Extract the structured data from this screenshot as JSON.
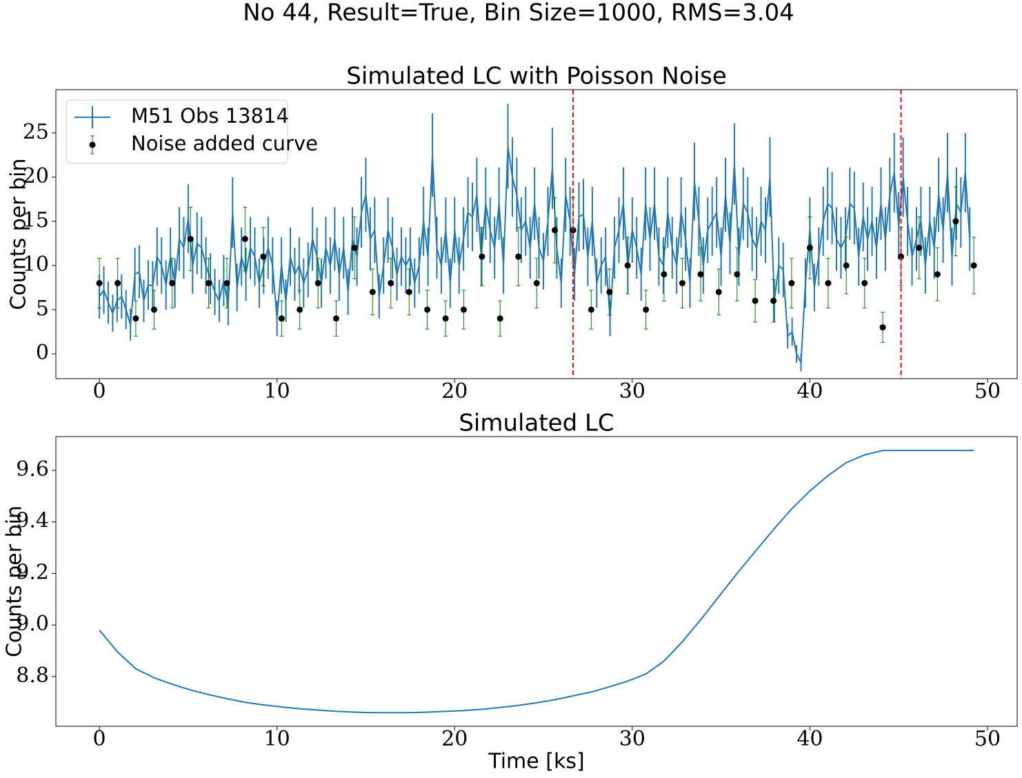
{
  "suptitle": "No 44, Result=True, Bin Size=1000, RMS=3.04",
  "chart_data": [
    {
      "type": "errorbar",
      "title": "Simulated LC with Poisson Noise",
      "ylabel": "Counts per bin",
      "xlim": [
        -2.45,
        51.67
      ],
      "ylim": [
        -2.81,
        29.9
      ],
      "xticks": [
        0,
        10,
        20,
        30,
        40,
        50
      ],
      "yticks": [
        0,
        5,
        10,
        15,
        20,
        25
      ],
      "legend": "upper left",
      "vlines": [
        26.67,
        45.13
      ],
      "vline_color": "#ff0000",
      "series": [
        {
          "name": "M51 Obs 13814",
          "color": "#1f77b4",
          "style": "line",
          "x": [
            0,
            0.25,
            0.5,
            0.75,
            1,
            1.25,
            1.5,
            1.75,
            2,
            2.25,
            2.5,
            2.75,
            3,
            3.25,
            3.5,
            3.75,
            4,
            4.25,
            4.5,
            4.75,
            5,
            5.25,
            5.5,
            5.75,
            6,
            6.25,
            6.5,
            6.75,
            7,
            7.25,
            7.5,
            7.75,
            8,
            8.25,
            8.5,
            8.75,
            9,
            9.25,
            9.5,
            9.75,
            10,
            10.25,
            10.5,
            10.75,
            11,
            11.25,
            11.5,
            11.75,
            12,
            12.25,
            12.5,
            12.75,
            13,
            13.25,
            13.5,
            13.75,
            14,
            14.25,
            14.5,
            14.75,
            15,
            15.25,
            15.5,
            15.75,
            16,
            16.25,
            16.5,
            16.75,
            17,
            17.25,
            17.5,
            17.75,
            18,
            18.25,
            18.5,
            18.75,
            19,
            19.25,
            19.5,
            19.75,
            20,
            20.25,
            20.5,
            20.75,
            21,
            21.25,
            21.5,
            21.75,
            22,
            22.25,
            22.5,
            22.75,
            23,
            23.25,
            23.5,
            23.75,
            24,
            24.25,
            24.5,
            24.75,
            25,
            25.25,
            25.5,
            25.75,
            26,
            26.25,
            26.5,
            26.75,
            27,
            27.25,
            27.5,
            27.75,
            28,
            28.25,
            28.5,
            28.75,
            29,
            29.25,
            29.5,
            29.75,
            30,
            30.25,
            30.5,
            30.75,
            31,
            31.25,
            31.5,
            31.75,
            32,
            32.25,
            32.5,
            32.75,
            33,
            33.25,
            33.5,
            33.75,
            34,
            34.25,
            34.5,
            34.75,
            35,
            35.25,
            35.5,
            35.75,
            36,
            36.25,
            36.5,
            36.75,
            37,
            37.25,
            37.5,
            37.75,
            38,
            38.25,
            38.5,
            38.75,
            39,
            39.25,
            39.5,
            39.75,
            40,
            40.25,
            40.5,
            40.75,
            41,
            41.25,
            41.5,
            41.75,
            42,
            42.25,
            42.5,
            42.75,
            43,
            43.25,
            43.5,
            43.75,
            44,
            44.25,
            44.5,
            44.75,
            45,
            45.25,
            45.5,
            45.75,
            46,
            46.25,
            46.5,
            46.75,
            47,
            47.25,
            47.5,
            47.75,
            48,
            48.25,
            48.5,
            48.75,
            49
          ],
          "values": [
            6.5,
            7.2,
            5.8,
            4.6,
            6,
            6.5,
            5,
            3.3,
            9,
            9.3,
            6,
            7.8,
            7.7,
            11,
            10,
            7.8,
            11,
            8,
            13,
            12,
            15.3,
            10,
            12.5,
            12,
            10,
            8.5,
            7,
            6,
            8.3,
            5.5,
            16,
            7.5,
            11,
            9,
            12,
            11,
            8,
            10,
            12,
            10,
            4,
            10,
            6,
            11,
            9,
            10,
            8,
            9.5,
            13,
            11,
            8,
            12,
            10,
            13,
            9,
            12,
            7,
            13,
            11,
            16,
            18,
            13,
            14,
            6.5,
            10,
            14,
            12,
            9,
            11,
            10,
            11,
            8,
            10,
            15,
            11,
            22.5,
            12,
            10,
            14,
            8,
            14,
            10,
            13,
            16,
            15.5,
            18,
            11,
            17,
            14,
            12,
            17,
            10,
            23.5,
            20,
            18,
            14,
            15,
            12,
            17,
            12,
            10.5,
            15,
            21,
            12,
            8,
            18,
            15,
            9,
            15.5,
            15.8,
            11,
            15,
            8,
            10,
            11,
            4,
            12,
            14,
            17,
            10,
            14,
            12,
            9,
            17,
            13,
            17,
            11,
            10,
            16,
            12,
            10,
            16,
            13,
            8,
            19.5,
            15,
            10,
            14,
            15,
            16,
            11,
            18,
            12.5,
            21.5,
            11,
            17,
            16,
            13,
            12,
            15,
            14,
            20,
            6,
            10,
            9.5,
            2,
            2.5,
            0,
            -1,
            8,
            14,
            7.5,
            11,
            15,
            17,
            16.5,
            13,
            12,
            13,
            17,
            16.5,
            11,
            15.5,
            13,
            15,
            12,
            17,
            13,
            18,
            20.5,
            14.5,
            20,
            15,
            11,
            13,
            15,
            10,
            15,
            12,
            18,
            14,
            20.5,
            11,
            17,
            16,
            20.5,
            13
          ],
          "errors": [
            2.5,
            2.7,
            2.4,
            2.1,
            2.4,
            2.5,
            2.2,
            1.8,
            3,
            3,
            2.4,
            2.8,
            2.8,
            3.3,
            3.2,
            2.8,
            3.3,
            2.8,
            3.6,
            3.5,
            3.9,
            3.2,
            3.5,
            3.5,
            3.2,
            2.9,
            2.6,
            2.4,
            2.9,
            2.3,
            4,
            2.7,
            3.3,
            3,
            3.5,
            3.3,
            2.8,
            3.2,
            3.5,
            3.2,
            2,
            3.2,
            2.4,
            3.3,
            3,
            3.2,
            2.8,
            3.1,
            3.6,
            3.3,
            2.8,
            3.5,
            3.2,
            3.6,
            3,
            3.5,
            2.6,
            3.6,
            3.3,
            4,
            4.2,
            3.6,
            3.7,
            2.5,
            3.2,
            3.7,
            3.5,
            3,
            3.3,
            3.2,
            3.3,
            2.8,
            3.2,
            3.9,
            3.3,
            4.7,
            3.5,
            3.2,
            3.7,
            2.8,
            3.7,
            3.2,
            3.6,
            4,
            3.9,
            4.2,
            3.3,
            4.1,
            3.7,
            3.5,
            4.1,
            3.2,
            4.8,
            4.5,
            4.2,
            3.7,
            3.9,
            3.5,
            4.1,
            3.5,
            3.2,
            3.9,
            4.6,
            3.5,
            2.8,
            4.2,
            3.9,
            3,
            3.9,
            4,
            3.3,
            3.9,
            2.8,
            3.2,
            3.3,
            2,
            3.5,
            3.7,
            4.1,
            3.2,
            3.7,
            3.5,
            3,
            4.1,
            3.6,
            4.1,
            3.3,
            3.2,
            4,
            3.5,
            3.2,
            4,
            3.6,
            2.8,
            4.4,
            3.9,
            3.2,
            3.7,
            3.9,
            4,
            3.3,
            4.2,
            3.5,
            4.6,
            3.3,
            4.1,
            4,
            3.6,
            3.5,
            3.9,
            3.7,
            4.5,
            2.4,
            3.2,
            3.1,
            1.4,
            1.6,
            1,
            1,
            2.8,
            3.7,
            2.7,
            3.3,
            3.9,
            4.1,
            4.1,
            3.6,
            3.5,
            3.6,
            4.1,
            4.1,
            3.3,
            3.9,
            3.6,
            3.9,
            3.5,
            4.1,
            3.6,
            4.2,
            4.5,
            3.8,
            4.5,
            3.9,
            3.3,
            3.6,
            3.9,
            3.2,
            3.9,
            3.5,
            4.2,
            3.7,
            4.5,
            3.3,
            4.1,
            4,
            4.5,
            3.6
          ]
        },
        {
          "name": "Noise added curve",
          "color": "#000000",
          "error_color": "#008000",
          "style": "points",
          "x": [
            0,
            1.03,
            2.05,
            3.08,
            4.1,
            5.13,
            6.15,
            7.18,
            8.2,
            9.23,
            10.26,
            11.28,
            12.31,
            13.33,
            14.36,
            15.38,
            16.41,
            17.44,
            18.46,
            19.49,
            20.51,
            21.54,
            22.56,
            23.59,
            24.62,
            25.64,
            26.67,
            27.69,
            28.72,
            29.74,
            30.77,
            31.79,
            32.82,
            33.85,
            34.87,
            35.9,
            36.92,
            37.95,
            38.97,
            40,
            41.03,
            42.05,
            43.08,
            44.1,
            45.13,
            46.15,
            47.18,
            48.21,
            49.23
          ],
          "values": [
            8,
            8,
            4,
            5,
            8,
            13,
            8,
            8,
            13,
            11,
            4,
            5,
            8,
            4,
            12,
            7,
            8,
            7,
            5,
            4,
            5,
            11,
            4,
            11,
            8,
            14,
            14,
            5,
            7,
            10,
            5,
            9,
            8,
            9,
            7,
            9,
            6,
            6,
            8,
            12,
            8,
            10,
            8,
            3,
            11,
            12,
            9,
            15,
            10
          ],
          "errors": [
            2.8,
            2.8,
            2,
            2.2,
            2.8,
            3.6,
            2.8,
            2.8,
            3.6,
            3.3,
            2,
            2.2,
            2.8,
            2,
            3.5,
            2.6,
            2.8,
            2.6,
            2.2,
            2,
            2.2,
            3.3,
            2,
            3.3,
            2.8,
            3.7,
            3.7,
            2.2,
            2.6,
            3.2,
            2.2,
            3,
            2.8,
            3,
            2.6,
            3,
            2.4,
            2.4,
            2.8,
            3.5,
            2.8,
            3.2,
            2.8,
            1.7,
            3.3,
            3.5,
            3,
            3.9,
            3.2
          ]
        }
      ]
    },
    {
      "type": "line",
      "title": "Simulated LC",
      "ylabel": "Counts per bin",
      "xlabel": "Time [ks]",
      "xlim": [
        -2.45,
        51.67
      ],
      "ylim": [
        8.607,
        9.731
      ],
      "xticks": [
        0,
        10,
        20,
        30,
        40,
        50
      ],
      "yticks": [
        8.8,
        {
          "value": 9,
          "label": "9.0"
        },
        9.2,
        9.4,
        9.6
      ],
      "series": [
        {
          "color": "#1f77b4",
          "x": [
            0,
            1.03,
            2.05,
            3.08,
            4.1,
            5.13,
            6.15,
            7.18,
            8.2,
            9.23,
            10.26,
            11.28,
            12.31,
            13.33,
            14.36,
            15.38,
            16.41,
            17.44,
            18.46,
            19.49,
            20.51,
            21.54,
            22.56,
            23.59,
            24.62,
            25.64,
            26.67,
            27.69,
            28.72,
            29.74,
            30.77,
            31.79,
            32.82,
            33.85,
            34.87,
            35.9,
            36.92,
            37.95,
            38.97,
            40,
            41.03,
            42.05,
            43.08,
            44.1,
            45.13,
            46.15,
            47.18,
            48.21,
            49.23
          ],
          "values": [
            8.98,
            8.895,
            8.83,
            8.795,
            8.77,
            8.748,
            8.73,
            8.714,
            8.7,
            8.69,
            8.682,
            8.675,
            8.67,
            8.665,
            8.662,
            8.66,
            8.66,
            8.66,
            8.662,
            8.665,
            8.668,
            8.673,
            8.68,
            8.688,
            8.698,
            8.71,
            8.725,
            8.74,
            8.76,
            8.782,
            8.81,
            8.86,
            8.935,
            9.02,
            9.11,
            9.2,
            9.285,
            9.37,
            9.45,
            9.52,
            9.58,
            9.63,
            9.66,
            9.677,
            9.677,
            9.677,
            9.677,
            9.677,
            9.677
          ]
        }
      ]
    }
  ]
}
